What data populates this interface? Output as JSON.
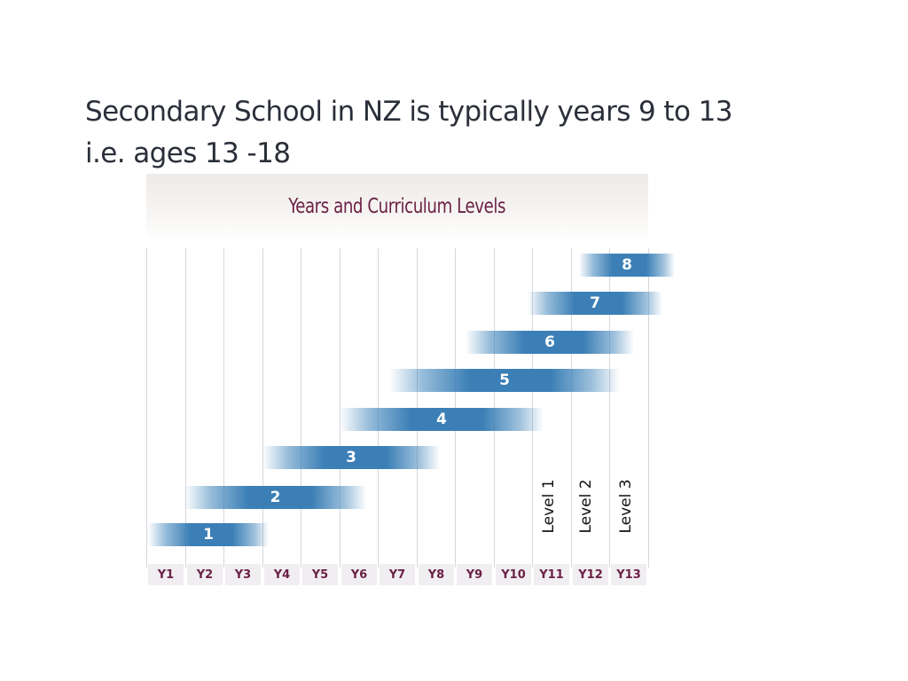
{
  "heading": {
    "line1": "Secondary School in NZ is typically years 9 to 13",
    "line2": "i.e. ages 13 -18"
  },
  "figure": {
    "title": "Years and Curriculum Levels",
    "levels": [
      "1",
      "2",
      "3",
      "4",
      "5",
      "6",
      "7",
      "8"
    ],
    "years": [
      "Y1",
      "Y2",
      "Y3",
      "Y4",
      "Y5",
      "Y6",
      "Y7",
      "Y8",
      "Y9",
      "Y10",
      "Y11",
      "Y12",
      "Y13"
    ],
    "secondary_levels": [
      "Level 1",
      "Level 2",
      "Level 3"
    ],
    "colors": {
      "bar": "#3b7fb6",
      "title": "#6b2146",
      "year_box": "#f1eef2"
    }
  }
}
